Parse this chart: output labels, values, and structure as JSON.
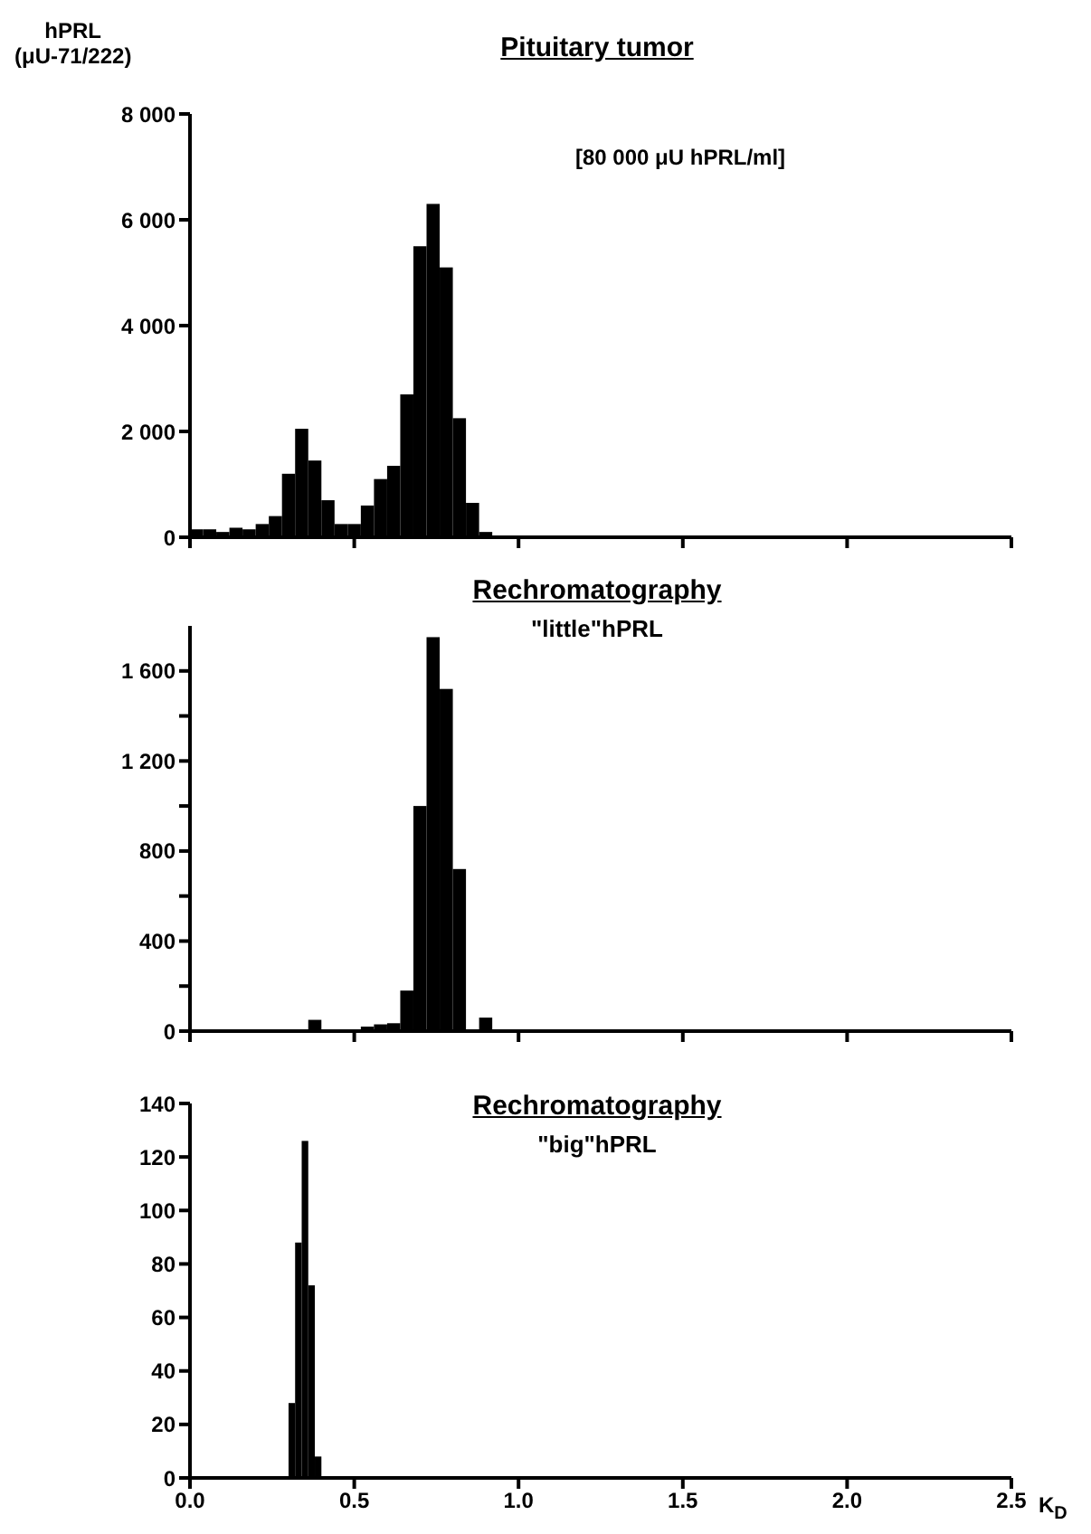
{
  "chart_data": [
    {
      "type": "histogram",
      "title": "Pituitary tumor",
      "ylabel": "hPRL\n(μU-71/222)",
      "annotations": [
        "[80 000 μU hPRL/ml]"
      ],
      "color": "#000000",
      "bins": [
        0,
        0.04,
        0.08,
        0.12,
        0.16,
        0.2,
        0.24,
        0.28,
        0.32,
        0.36,
        0.4,
        0.44,
        0.48,
        0.52,
        0.56,
        0.6,
        0.64,
        0.68,
        0.72,
        0.76,
        0.8,
        0.84,
        0.88,
        0.92,
        0.96,
        1.0
      ],
      "values": [
        150,
        150,
        100,
        180,
        150,
        250,
        400,
        1200,
        2050,
        1450,
        700,
        250,
        250,
        600,
        1100,
        1350,
        2700,
        5500,
        6300,
        5100,
        2250,
        650,
        100,
        0,
        0
      ],
      "xlim": [
        0,
        2.5
      ],
      "xticks": [
        0,
        0.5,
        1,
        1.5,
        2,
        2.5
      ],
      "ylim": [
        0,
        8000
      ],
      "yticks": [
        0,
        {
          "value": 2000,
          "label": "2 000"
        },
        {
          "value": 4000,
          "label": "4 000"
        },
        {
          "value": 6000,
          "label": "6 000"
        },
        {
          "value": 8000,
          "label": "8 000"
        }
      ],
      "tick_labels": "y"
    },
    {
      "type": "histogram",
      "title": "Rechromatography",
      "subtitle": "\"little\"hPRL",
      "color": "#000000",
      "bins": [
        0,
        0.04,
        0.08,
        0.12,
        0.16,
        0.2,
        0.24,
        0.28,
        0.32,
        0.36,
        0.4,
        0.44,
        0.48,
        0.52,
        0.56,
        0.6,
        0.64,
        0.68,
        0.72,
        0.76,
        0.8,
        0.84,
        0.88,
        0.92,
        0.96,
        1.0
      ],
      "values": [
        0,
        0,
        0,
        0,
        0,
        0,
        0,
        0,
        0,
        50,
        0,
        0,
        0,
        20,
        30,
        35,
        180,
        1000,
        1750,
        1520,
        720,
        0,
        60,
        0,
        0
      ],
      "xlim": [
        0,
        2.5
      ],
      "xticks": [
        0,
        0.5,
        1,
        1.5,
        2,
        2.5
      ],
      "ylim": [
        0,
        1800
      ],
      "yticks": [
        0,
        {
          "value": 200,
          "label": null
        },
        400,
        {
          "value": 600,
          "label": null
        },
        800,
        {
          "value": 1000,
          "label": null
        },
        {
          "value": 1200,
          "label": "1 200"
        },
        {
          "value": 1400,
          "label": null
        },
        {
          "value": 1600,
          "label": "1 600"
        }
      ],
      "tick_labels": "y"
    },
    {
      "type": "histogram",
      "title": "Rechromatography",
      "subtitle": "\"big\"hPRL",
      "xlabel": "K$_{D}$",
      "color": "#000000",
      "bins": [
        0.3,
        0.32,
        0.34,
        0.36,
        0.38,
        0.4
      ],
      "values": [
        28,
        88,
        126,
        72,
        8
      ],
      "xlim": [
        0,
        2.5
      ],
      "xticks": [
        {
          "value": 0,
          "label": "0.0"
        },
        {
          "value": 0.5,
          "label": "0.5"
        },
        {
          "value": 1,
          "label": "1.0"
        },
        {
          "value": 1.5,
          "label": "1.5"
        },
        {
          "value": 2,
          "label": "2.0"
        },
        {
          "value": 2.5,
          "label": "2.5"
        }
      ],
      "ylim": [
        0,
        140
      ],
      "yticks": [
        0,
        20,
        40,
        60,
        80,
        100,
        120,
        140
      ]
    }
  ]
}
